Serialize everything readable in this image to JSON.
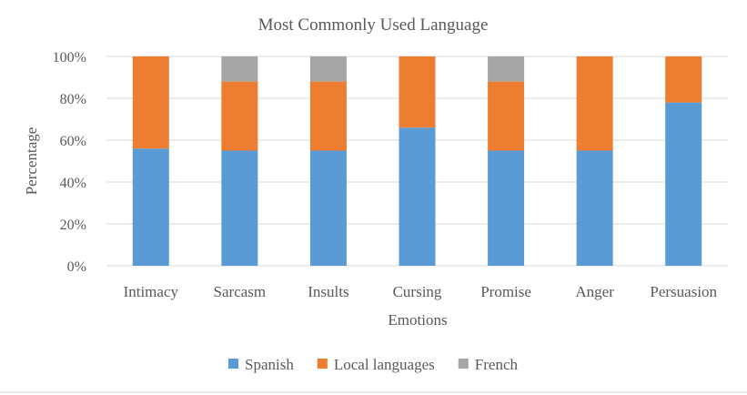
{
  "chart_data": {
    "type": "bar",
    "stacked": true,
    "title": "Most Commonly Used Language",
    "xlabel": "Emotions",
    "ylabel": "Percentage",
    "categories": [
      "Intimacy",
      "Sarcasm",
      "Insults",
      "Cursing",
      "Promise",
      "Anger",
      "Persuasion"
    ],
    "series": [
      {
        "name": "Spanish",
        "color": "#5b9bd5",
        "values": [
          56,
          55,
          55,
          66,
          55,
          55,
          78
        ]
      },
      {
        "name": "Local languages",
        "color": "#ed7d31",
        "values": [
          44,
          33,
          33,
          34,
          33,
          45,
          22
        ]
      },
      {
        "name": "French",
        "color": "#a5a5a5",
        "values": [
          0,
          12,
          12,
          0,
          12,
          0,
          0
        ]
      }
    ],
    "ylim": [
      0,
      100
    ],
    "yticks": [
      "0%",
      "20%",
      "40%",
      "60%",
      "80%",
      "100%"
    ],
    "grid": true,
    "legend_position": "bottom"
  }
}
